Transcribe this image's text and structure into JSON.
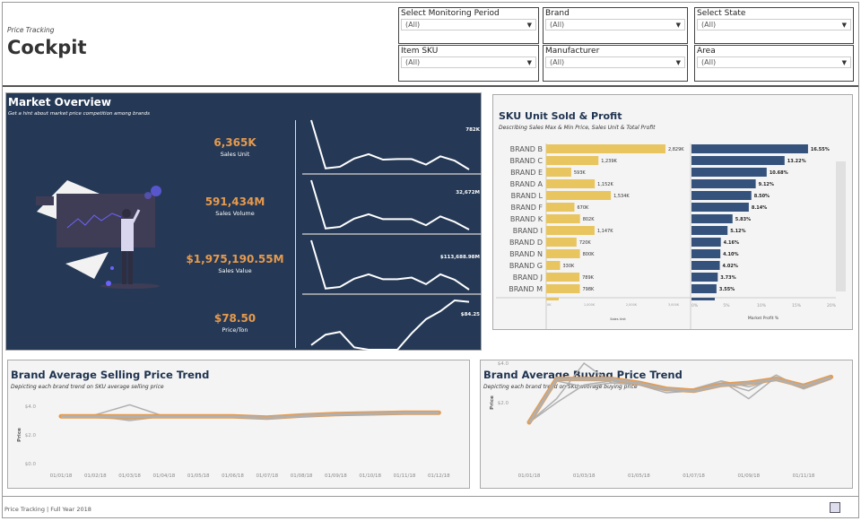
{
  "header": {
    "subtitle": "Price Tracking",
    "title": "Cockpit"
  },
  "filters": [
    {
      "label": "Select Monitoring Period",
      "value": "(All)"
    },
    {
      "label": "Brand",
      "value": "(All)"
    },
    {
      "label": "Select State",
      "value": "(All)"
    },
    {
      "label": "Item SKU",
      "value": "(All)"
    },
    {
      "label": "Manufacturer",
      "value": "(All)"
    },
    {
      "label": "Area",
      "value": "(All)"
    }
  ],
  "market": {
    "title": "Market Overview",
    "subtitle": "Get a hint about market price competition among brands",
    "kpis": [
      {
        "value": "6,365K",
        "label": "Sales Unit",
        "end_label": "782K",
        "trend": [
          10,
          1.2,
          1.5,
          3,
          3.8,
          2.8,
          2.9,
          2.9,
          1.9,
          3.4,
          2.6,
          1.0
        ]
      },
      {
        "value": "591,434M",
        "label": "Sales Volume",
        "end_label": "32,672M",
        "trend": [
          10,
          1.2,
          1.5,
          3,
          3.8,
          2.9,
          2.9,
          2.9,
          1.8,
          3.4,
          2.4,
          1.0
        ]
      },
      {
        "value": "$1,975,190.55M",
        "label": "Sales Value",
        "end_label": "$113,688.98M",
        "trend": [
          10,
          1.2,
          1.5,
          3,
          3.8,
          2.9,
          2.9,
          3.2,
          2.0,
          3.8,
          2.8,
          1.0
        ]
      },
      {
        "value": "$78.50",
        "label": "Price/Ton",
        "end_label": "$84.25",
        "trend": [
          2,
          4.2,
          4.8,
          1.5,
          1,
          1,
          1,
          4.5,
          7.5,
          9.2,
          11.5,
          11.2
        ]
      }
    ],
    "colors": {
      "bg": "#253956",
      "kpi": "#e69a4d"
    }
  },
  "sku": {
    "title": "SKU Unit Sold & Profit",
    "subtitle": "Describing Sales Max & Min Price, Sales Unit & Total Profit"
  },
  "chart_data": [
    {
      "type": "bar",
      "title": "SKU Unit Sold & Profit",
      "xlabel": "Sales Unit",
      "xlim": [
        0,
        3000
      ],
      "categories": [
        "BRAND B",
        "BRAND C",
        "BRAND E",
        "BRAND A",
        "BRAND L",
        "BRAND F",
        "BRAND K",
        "BRAND I",
        "BRAND D",
        "BRAND N",
        "BRAND G",
        "BRAND J",
        "BRAND M"
      ],
      "values": [
        2829,
        1239,
        593,
        1152,
        1534,
        670,
        802,
        1147,
        720,
        800,
        330,
        789,
        798
      ],
      "data_labels": [
        "2,829K",
        "1,239K",
        "593K",
        "1,152K",
        "1,534K",
        "670K",
        "802K",
        "1,147K",
        "720K",
        "800K",
        "330K",
        "789K",
        "798K"
      ],
      "ticks": [
        "0K",
        "1,000K",
        "2,000K",
        "3,000K"
      ],
      "color": "#e8c55e"
    },
    {
      "type": "bar",
      "xlabel": "Market Profit %",
      "xlim": [
        0,
        20
      ],
      "values": [
        16.55,
        13.22,
        10.68,
        9.12,
        8.5,
        8.14,
        5.83,
        5.12,
        4.16,
        4.1,
        4.02,
        3.73,
        3.55
      ],
      "data_labels": [
        "16.55%",
        "13.22%",
        "10.68%",
        "9.12%",
        "8.50%",
        "8.14%",
        "5.83%",
        "5.12%",
        "4.16%",
        "4.10%",
        "4.02%",
        "3.73%",
        "3.55%"
      ],
      "ticks": [
        "0%",
        "5%",
        "10%",
        "15%",
        "20%"
      ],
      "color": "#34527c"
    },
    {
      "type": "line",
      "title": "Brand Average Selling Price Trend",
      "subtitle": "Depicting each brand trend on SKU average selling price",
      "ylabel": "Price",
      "ylim": [
        0,
        4
      ],
      "yticks": [
        "$0.0",
        "$2.0",
        "$4.0"
      ],
      "x": [
        "01/01/18",
        "01/02/18",
        "01/03/18",
        "01/04/18",
        "01/05/18",
        "01/06/18",
        "01/07/18",
        "01/08/18",
        "01/09/18",
        "01/10/18",
        "01/11/18",
        "01/12/18"
      ],
      "highlight": [
        3.3,
        3.3,
        3.3,
        3.3,
        3.3,
        3.3,
        3.2,
        3.35,
        3.45,
        3.5,
        3.55,
        3.55
      ],
      "series": [
        [
          3.3,
          3.3,
          3.0,
          3.3,
          3.3,
          3.3,
          3.25,
          3.4,
          3.45,
          3.5,
          3.5,
          3.5
        ],
        [
          3.3,
          3.4,
          4.1,
          3.3,
          3.3,
          3.3,
          3.3,
          3.4,
          3.45,
          3.5,
          3.55,
          3.55
        ],
        [
          3.3,
          3.2,
          3.1,
          3.35,
          3.3,
          3.3,
          3.3,
          3.35,
          3.4,
          3.45,
          3.5,
          3.5
        ]
      ],
      "colors": {
        "highlight": "#e69a4d",
        "other": "#b0b0b0"
      }
    },
    {
      "type": "line",
      "title": "Brand Average Buying Price Trend",
      "subtitle": "Depicting each brand trend on SKU average buying price",
      "ylabel": "Price",
      "ylim": [
        1,
        4
      ],
      "yticks": [
        "$2.0",
        "$4.0"
      ],
      "xticks": [
        "01/01/18",
        "01/03/18",
        "01/05/18",
        "01/07/18",
        "01/09/18",
        "01/11/18"
      ],
      "highlight": [
        1.0,
        3.2,
        3.2,
        3.2,
        3.0,
        2.7,
        2.6,
        2.9,
        3.0,
        3.2,
        2.85,
        3.3
      ],
      "series": [
        [
          1.0,
          2.2,
          4.0,
          3.0,
          3.0,
          2.6,
          2.7,
          3.1,
          2.2,
          3.3,
          2.7,
          3.2
        ],
        [
          1.0,
          3.1,
          2.8,
          3.0,
          2.9,
          2.5,
          2.6,
          3.1,
          2.8,
          3.2,
          2.7,
          3.2
        ],
        [
          1.0,
          2.0,
          2.9,
          3.1,
          2.9,
          2.6,
          2.7,
          3.0,
          2.6,
          3.4,
          2.7,
          3.2
        ]
      ],
      "colors": {
        "highlight": "#e69a4d",
        "other": "#b0b0b0"
      }
    }
  ],
  "footer": {
    "text": "Price Tracking | Full Year 2018"
  }
}
